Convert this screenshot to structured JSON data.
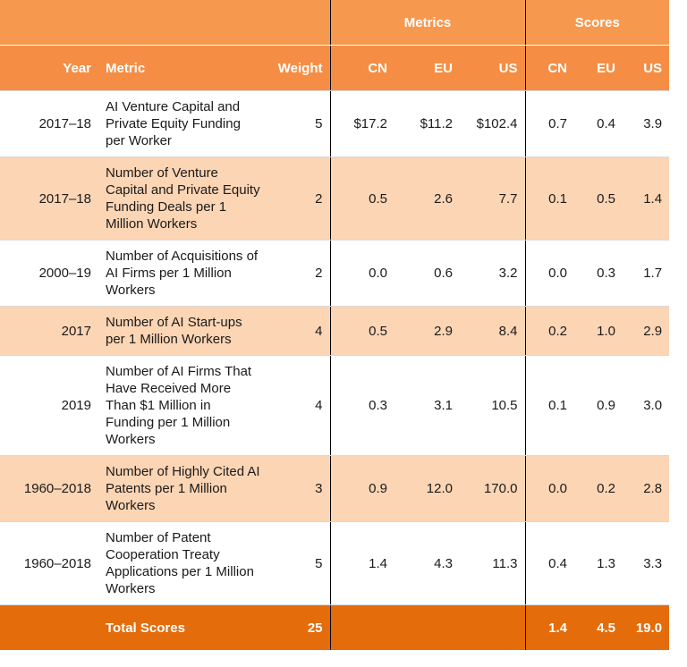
{
  "header": {
    "groups": [
      "Metrics",
      "Scores"
    ],
    "columns": [
      "Year",
      "Metric",
      "Weight",
      "CN",
      "EU",
      "US",
      "CN",
      "EU",
      "US"
    ]
  },
  "table": {
    "rows": [
      [
        "2017–18",
        "AI Venture Capital and Private Equity Funding per Worker",
        "5",
        "$17.2",
        "$11.2",
        "$102.4",
        "0.7",
        "0.4",
        "3.9"
      ],
      [
        "2017–18",
        "Number of Venture Capital and Private Equity Funding Deals per 1 Million Workers",
        "2",
        "0.5",
        "2.6",
        "7.7",
        "0.1",
        "0.5",
        "1.4"
      ],
      [
        "2000–19",
        "Number of Acquisitions of AI Firms per 1 Million Workers",
        "2",
        "0.0",
        "0.6",
        "3.2",
        "0.0",
        "0.3",
        "1.7"
      ],
      [
        "2017",
        "Number of AI Start-ups per 1 Million Workers",
        "4",
        "0.5",
        "2.9",
        "8.4",
        "0.2",
        "1.0",
        "2.9"
      ],
      [
        "2019",
        "Number of AI Firms That Have Received More Than $1 Million in Funding per 1 Million Workers",
        "4",
        "0.3",
        "3.1",
        "10.5",
        "0.1",
        "0.9",
        "3.0"
      ],
      [
        "1960–2018",
        "Number of Highly Cited AI Patents per 1 Million Workers",
        "3",
        "0.9",
        "12.0",
        "170.0",
        "0.0",
        "0.2",
        "2.8"
      ],
      [
        "1960–2018",
        "Number of Patent Cooperation Treaty Applications per 1 Million Workers",
        "5",
        "1.4",
        "4.3",
        "11.3",
        "0.4",
        "1.3",
        "3.3"
      ]
    ]
  },
  "total": {
    "label": "Total Scores",
    "weight": "25",
    "scores": [
      "1.4",
      "4.5",
      "19.0"
    ]
  }
}
